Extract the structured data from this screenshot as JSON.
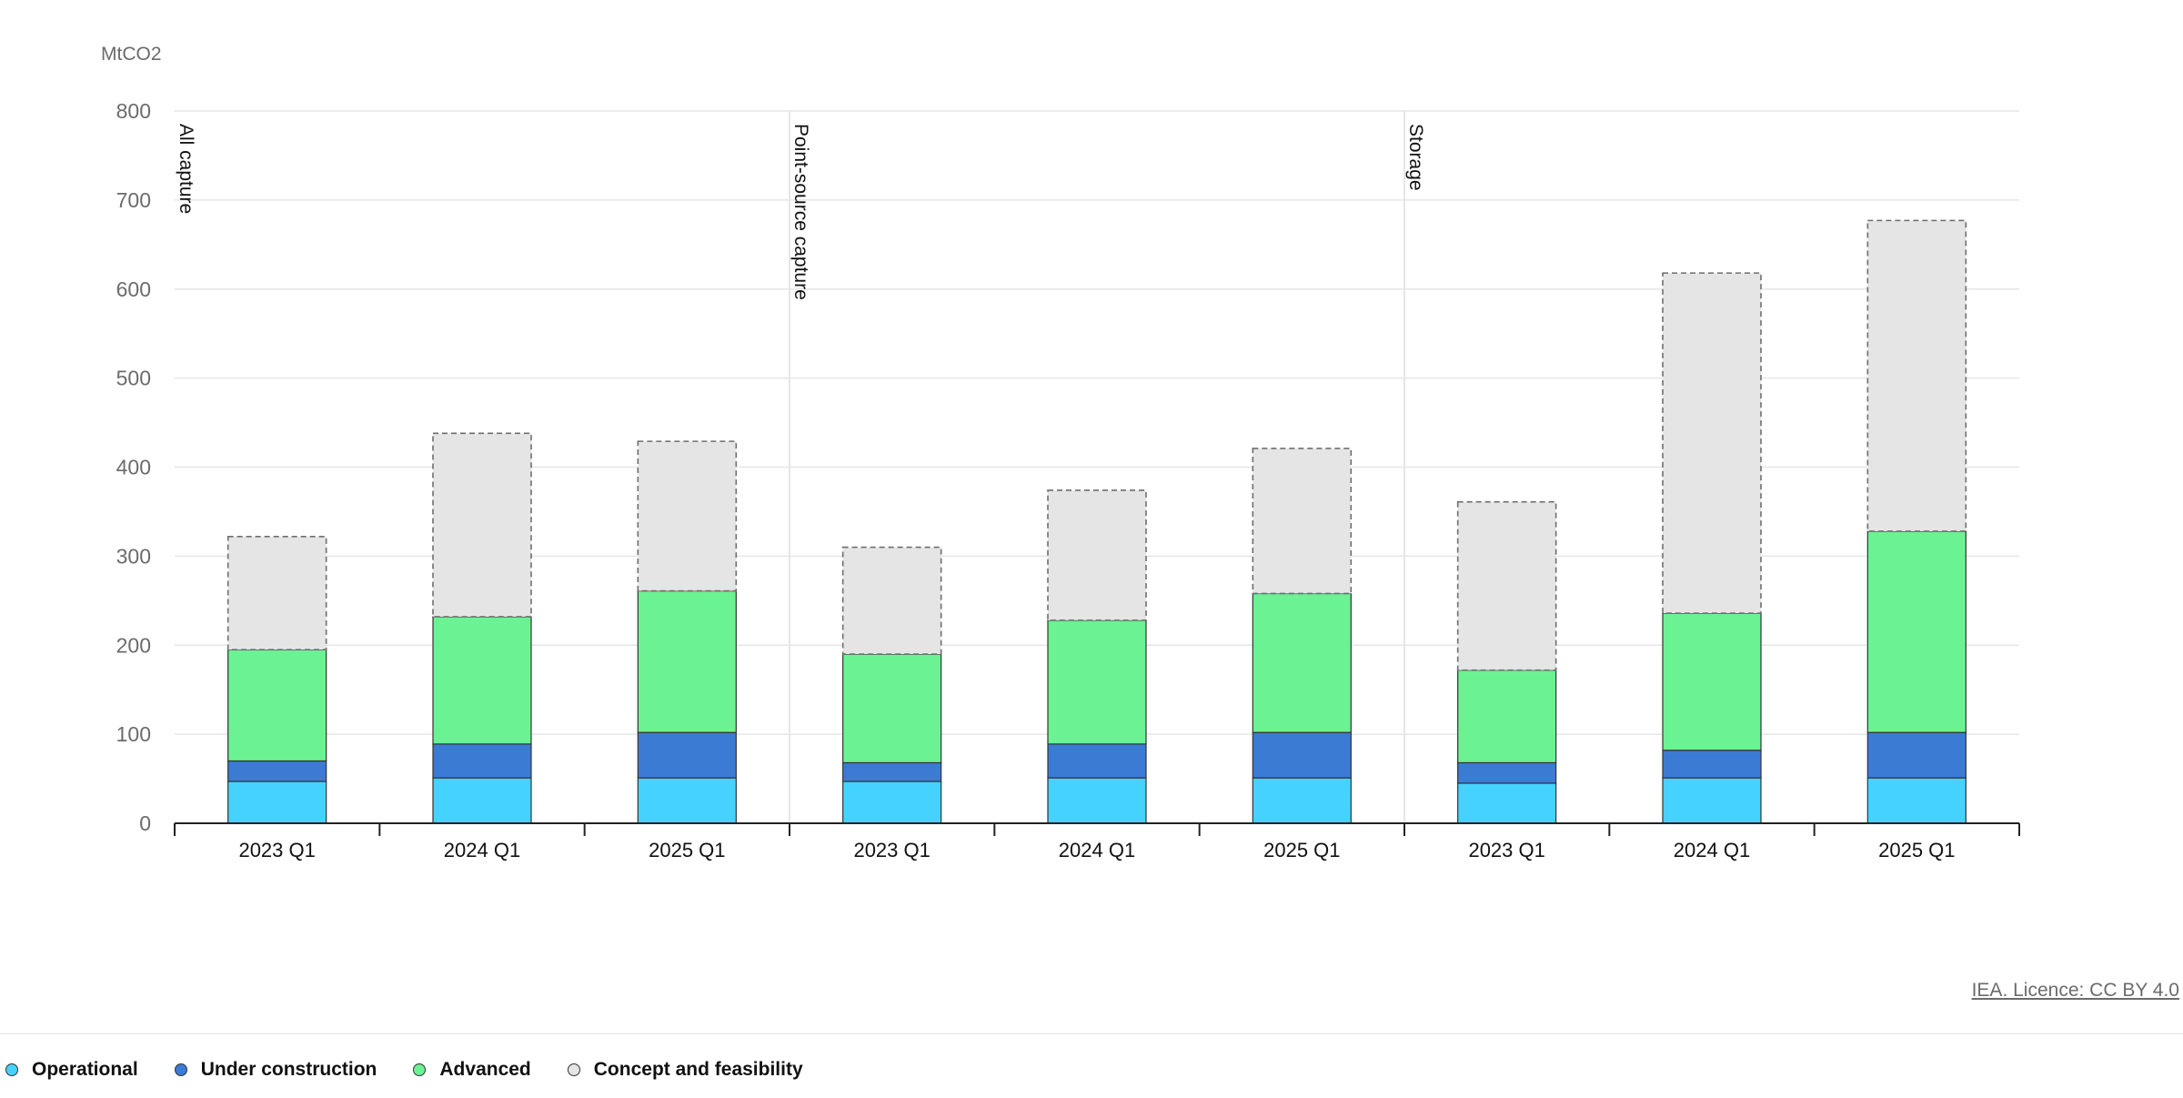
{
  "chart_data": {
    "type": "bar",
    "stacked": true,
    "ylabel": "MtCO2",
    "ylim": [
      0,
      800
    ],
    "yticks": [
      0,
      100,
      200,
      300,
      400,
      500,
      600,
      700,
      800
    ],
    "grid": true,
    "groups": [
      {
        "label": "All capture",
        "categories": [
          "2023 Q1",
          "2024 Q1",
          "2025 Q1"
        ]
      },
      {
        "label": "Point-source capture",
        "categories": [
          "2023 Q1",
          "2024 Q1",
          "2025 Q1"
        ]
      },
      {
        "label": "Storage",
        "categories": [
          "2023 Q1",
          "2024 Q1",
          "2025 Q1"
        ]
      }
    ],
    "categories": [
      "2023 Q1",
      "2024 Q1",
      "2025 Q1",
      "2023 Q1",
      "2024 Q1",
      "2025 Q1",
      "2023 Q1",
      "2024 Q1",
      "2025 Q1"
    ],
    "series": [
      {
        "name": "Operational",
        "color": "#46d2ff",
        "values": [
          47,
          51,
          51,
          47,
          51,
          51,
          45,
          51,
          51
        ]
      },
      {
        "name": "Under construction",
        "color": "#3c7bd4",
        "values": [
          23,
          38,
          51,
          21,
          38,
          51,
          23,
          31,
          51
        ]
      },
      {
        "name": "Advanced",
        "color": "#6bf293",
        "values": [
          125,
          143,
          159,
          122,
          139,
          156,
          104,
          154,
          226
        ]
      },
      {
        "name": "Concept and feasibility",
        "color": "#e5e5e5",
        "values": [
          127,
          206,
          168,
          120,
          146,
          163,
          189,
          382,
          349
        ]
      }
    ],
    "legend_position": "bottom-left"
  },
  "footer": {
    "credit": "IEA. Licence: CC BY 4.0"
  }
}
